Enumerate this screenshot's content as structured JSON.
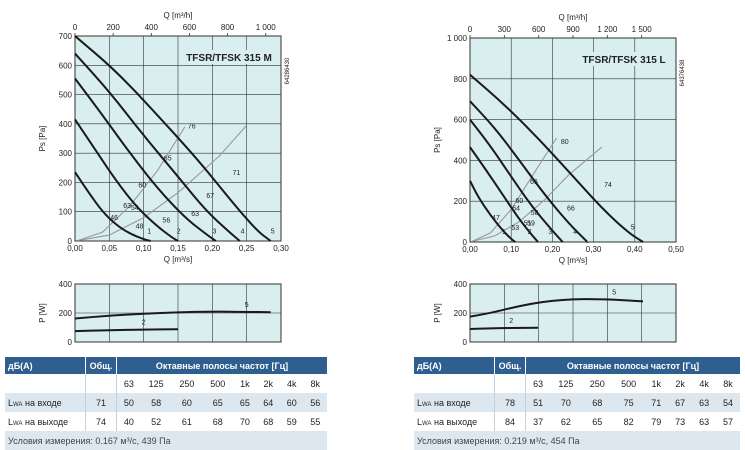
{
  "colors": {
    "plot_bg": "#d9eeee",
    "header_bg": "#2f5f8f",
    "row_shade": "#dde7f0",
    "curve": "#1a1a1a",
    "iso": "#999999"
  },
  "chart_data": [
    {
      "type": "line",
      "title": "TFSR/TFSK 315 M",
      "side_code": "64286430",
      "xlabel": "Q [m³/s]",
      "x2label": "Q [m³/h]",
      "ylabel": "Ps [Pa]",
      "xlim": [
        0,
        0.3
      ],
      "ylim": [
        0,
        700
      ],
      "x2lim": [
        0,
        1080
      ],
      "xticks": [
        "0,00",
        "0,05",
        "0,10",
        "0,15",
        "0,20",
        "0,25",
        "0,30"
      ],
      "yticks": [
        "0",
        "100",
        "200",
        "300",
        "400",
        "500",
        "600",
        "700"
      ],
      "x2ticks": [
        {
          "v": 0,
          "label": "0"
        },
        {
          "v": 200,
          "label": "200"
        },
        {
          "v": 400,
          "label": "400"
        },
        {
          "v": 600,
          "label": "600"
        },
        {
          "v": 800,
          "label": "800"
        },
        {
          "v": 1000,
          "label": "1 000"
        }
      ],
      "grid": true,
      "series": [
        {
          "name": "1",
          "x": [
            0,
            0.02,
            0.04,
            0.06,
            0.08,
            0.1,
            0.11
          ],
          "y": [
            235,
            165,
            100,
            55,
            25,
            6,
            0
          ]
        },
        {
          "name": "2",
          "x": [
            0,
            0.03,
            0.06,
            0.09,
            0.12,
            0.14,
            0.15
          ],
          "y": [
            415,
            310,
            205,
            115,
            50,
            14,
            0
          ]
        },
        {
          "name": "3",
          "x": [
            0,
            0.04,
            0.08,
            0.12,
            0.16,
            0.19,
            0.205
          ],
          "y": [
            555,
            430,
            300,
            180,
            80,
            25,
            0
          ]
        },
        {
          "name": "4",
          "x": [
            0,
            0.05,
            0.1,
            0.15,
            0.19,
            0.225,
            0.24
          ],
          "y": [
            640,
            510,
            360,
            220,
            105,
            30,
            0
          ]
        },
        {
          "name": "5",
          "x": [
            0,
            0.06,
            0.12,
            0.18,
            0.23,
            0.265,
            0.285
          ],
          "y": [
            700,
            580,
            430,
            275,
            130,
            35,
            0
          ]
        }
      ],
      "iso_lines": [
        {
          "x": [
            0.005,
            0.05,
            0.1,
            0.15,
            0.21,
            0.25
          ],
          "y": [
            2,
            20,
            80,
            165,
            290,
            395
          ]
        },
        {
          "x": [
            0.005,
            0.04,
            0.08,
            0.12,
            0.16
          ],
          "y": [
            2,
            30,
            120,
            240,
            390
          ]
        }
      ],
      "annotations": [
        {
          "x": 0.17,
          "y": 385,
          "text": "76"
        },
        {
          "x": 0.135,
          "y": 275,
          "text": "65"
        },
        {
          "x": 0.235,
          "y": 225,
          "text": "71"
        },
        {
          "x": 0.098,
          "y": 182,
          "text": "60"
        },
        {
          "x": 0.197,
          "y": 147,
          "text": "67"
        },
        {
          "x": 0.076,
          "y": 112,
          "text": "63"
        },
        {
          "x": 0.087,
          "y": 106,
          "text": "54"
        },
        {
          "x": 0.175,
          "y": 85,
          "text": "63"
        },
        {
          "x": 0.057,
          "y": 71,
          "text": "46"
        },
        {
          "x": 0.133,
          "y": 64,
          "text": "56"
        },
        {
          "x": 0.094,
          "y": 43,
          "text": "48"
        },
        {
          "x": 0.108,
          "y": 25,
          "text": "1"
        },
        {
          "x": 0.151,
          "y": 25,
          "text": "2"
        },
        {
          "x": 0.203,
          "y": 25,
          "text": "3"
        },
        {
          "x": 0.244,
          "y": 25,
          "text": "4"
        },
        {
          "x": 0.288,
          "y": 25,
          "text": "5"
        }
      ]
    },
    {
      "type": "line",
      "xlabel": "",
      "ylabel": "P [W]",
      "xlim": [
        0,
        0.3
      ],
      "ylim": [
        0,
        400
      ],
      "yticks": [
        "0",
        "200",
        "400"
      ],
      "grid": true,
      "series": [
        {
          "name": "2",
          "x": [
            0,
            0.05,
            0.1,
            0.15
          ],
          "y": [
            75,
            82,
            86,
            88
          ]
        },
        {
          "name": "5",
          "x": [
            0,
            0.05,
            0.1,
            0.15,
            0.2,
            0.25,
            0.285
          ],
          "y": [
            162,
            182,
            195,
            205,
            210,
            208,
            205
          ]
        }
      ]
    },
    {
      "type": "line",
      "title": "TFSR/TFSK 315 L",
      "side_code": "64376438",
      "xlabel": "Q [m³/s]",
      "x2label": "Q [m³/h]",
      "ylabel": "Ps [Pa]",
      "xlim": [
        0,
        0.5
      ],
      "ylim": [
        0,
        1000
      ],
      "x2lim": [
        0,
        1800
      ],
      "xticks": [
        "0,00",
        "0,10",
        "0,20",
        "0,30",
        "0,40",
        "0,50"
      ],
      "yticks": [
        "0",
        "200",
        "400",
        "600",
        "800",
        "1 000"
      ],
      "x2ticks": [
        {
          "v": 0,
          "label": "0"
        },
        {
          "v": 300,
          "label": "300"
        },
        {
          "v": 600,
          "label": "600"
        },
        {
          "v": 900,
          "label": "900"
        },
        {
          "v": 1200,
          "label": "1 200"
        },
        {
          "v": 1500,
          "label": "1 500"
        }
      ],
      "grid": true,
      "series": [
        {
          "name": "1",
          "x": [
            0,
            0.02,
            0.05,
            0.08,
            0.1,
            0.11
          ],
          "y": [
            300,
            220,
            130,
            55,
            15,
            0
          ]
        },
        {
          "name": "2",
          "x": [
            0,
            0.04,
            0.08,
            0.12,
            0.15,
            0.165
          ],
          "y": [
            465,
            350,
            230,
            110,
            35,
            0
          ]
        },
        {
          "name": "3",
          "x": [
            0,
            0.05,
            0.1,
            0.15,
            0.2,
            0.225
          ],
          "y": [
            600,
            470,
            320,
            175,
            55,
            0
          ]
        },
        {
          "name": "4",
          "x": [
            0,
            0.06,
            0.12,
            0.18,
            0.24,
            0.285
          ],
          "y": [
            690,
            560,
            400,
            235,
            90,
            0
          ]
        },
        {
          "name": "5",
          "x": [
            0,
            0.08,
            0.16,
            0.24,
            0.32,
            0.385,
            0.42
          ],
          "y": [
            820,
            680,
            520,
            345,
            165,
            45,
            0
          ]
        }
      ],
      "iso_lines": [
        {
          "x": [
            0.005,
            0.06,
            0.12,
            0.18,
            0.24,
            0.32
          ],
          "y": [
            3,
            30,
            100,
            205,
            330,
            465
          ]
        },
        {
          "x": [
            0.005,
            0.05,
            0.1,
            0.15,
            0.21
          ],
          "y": [
            3,
            45,
            160,
            320,
            510
          ]
        }
      ],
      "annotations": [
        {
          "x": 0.23,
          "y": 480,
          "text": "80"
        },
        {
          "x": 0.335,
          "y": 270,
          "text": "74"
        },
        {
          "x": 0.155,
          "y": 285,
          "text": "66"
        },
        {
          "x": 0.245,
          "y": 155,
          "text": "66"
        },
        {
          "x": 0.12,
          "y": 190,
          "text": "60"
        },
        {
          "x": 0.112,
          "y": 155,
          "text": "64"
        },
        {
          "x": 0.157,
          "y": 132,
          "text": "58"
        },
        {
          "x": 0.063,
          "y": 108,
          "text": "47"
        },
        {
          "x": 0.14,
          "y": 82,
          "text": "51"
        },
        {
          "x": 0.148,
          "y": 82,
          "text": "59"
        },
        {
          "x": 0.11,
          "y": 58,
          "text": "53"
        },
        {
          "x": 0.082,
          "y": 38,
          "text": "1"
        },
        {
          "x": 0.145,
          "y": 38,
          "text": "2"
        },
        {
          "x": 0.195,
          "y": 38,
          "text": "3"
        },
        {
          "x": 0.255,
          "y": 38,
          "text": "4"
        },
        {
          "x": 0.395,
          "y": 62,
          "text": "5"
        }
      ]
    },
    {
      "type": "line",
      "xlabel": "",
      "ylabel": "P [W]",
      "xlim": [
        0,
        0.5
      ],
      "ylim": [
        0,
        400
      ],
      "yticks": [
        "0",
        "200",
        "400"
      ],
      "grid": true,
      "series": [
        {
          "name": "2",
          "x": [
            0,
            0.05,
            0.1,
            0.165
          ],
          "y": [
            90,
            95,
            97,
            98
          ]
        },
        {
          "name": "5",
          "x": [
            0,
            0.05,
            0.1,
            0.15,
            0.2,
            0.25,
            0.3,
            0.35,
            0.42
          ],
          "y": [
            175,
            200,
            235,
            265,
            285,
            295,
            296,
            292,
            280
          ]
        }
      ]
    }
  ],
  "table_left": {
    "header": [
      "дБ(A)",
      "Общ.",
      "Октавные полосы частот [Гц]"
    ],
    "freqs": [
      "63",
      "125",
      "250",
      "500",
      "1k",
      "2k",
      "4k",
      "8k"
    ],
    "row_in": {
      "label_l": "L",
      "label_sub": "WA",
      "label_rest": " на входе",
      "total": "71",
      "values": [
        "50",
        "58",
        "60",
        "65",
        "65",
        "64",
        "60",
        "56"
      ]
    },
    "row_out": {
      "label_l": "L",
      "label_sub": "WA",
      "label_rest": " на выходе",
      "total": "74",
      "values": [
        "40",
        "52",
        "61",
        "68",
        "70",
        "68",
        "59",
        "55"
      ]
    },
    "conditions": "Условия измерения: 0.167 м³/с, 439 Па"
  },
  "table_right": {
    "header": [
      "дБ(A)",
      "Общ.",
      "Октавные полосы частот [Гц]"
    ],
    "freqs": [
      "63",
      "125",
      "250",
      "500",
      "1k",
      "2k",
      "4k",
      "8k"
    ],
    "row_in": {
      "label_l": "L",
      "label_sub": "WA",
      "label_rest": " на входе",
      "total": "78",
      "values": [
        "51",
        "70",
        "68",
        "75",
        "71",
        "67",
        "63",
        "54"
      ]
    },
    "row_out": {
      "label_l": "L",
      "label_sub": "WA",
      "label_rest": " на выходе",
      "total": "84",
      "values": [
        "37",
        "62",
        "65",
        "82",
        "79",
        "73",
        "63",
        "57"
      ]
    },
    "conditions": "Условия измерения: 0.219 м³/с, 454 Па"
  }
}
